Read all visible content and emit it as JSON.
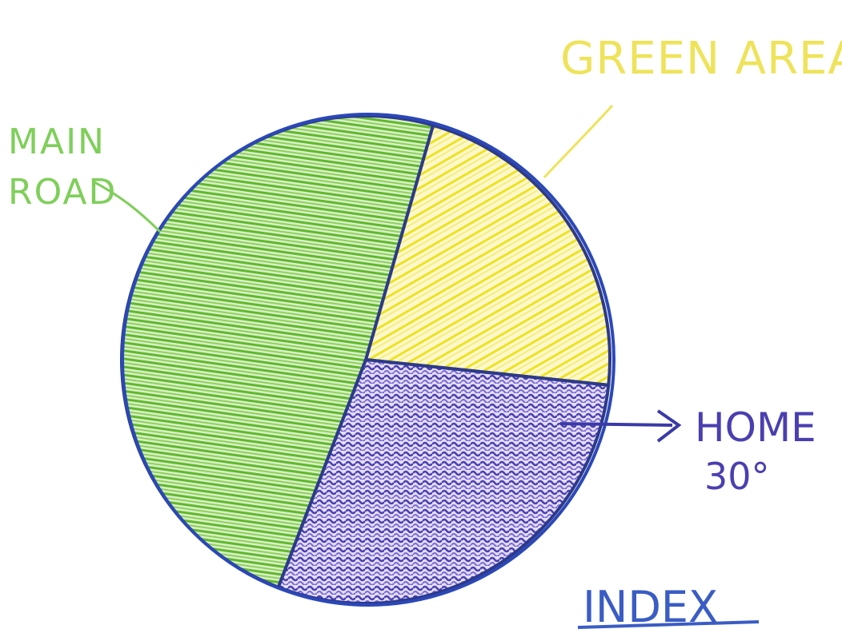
{
  "chart_data": {
    "type": "pie",
    "title": "",
    "slices": [
      {
        "label": "MAIN ROAD",
        "value": 175,
        "color": "#6cc23a"
      },
      {
        "label": "GREEN AREA",
        "value": 80,
        "color": "#f1e62b"
      },
      {
        "label": "HOME",
        "value": 105,
        "color": "#4a3fb0",
        "note": "30°"
      }
    ],
    "legend_title": "INDEX",
    "outline_color": "#2b48b8"
  }
}
